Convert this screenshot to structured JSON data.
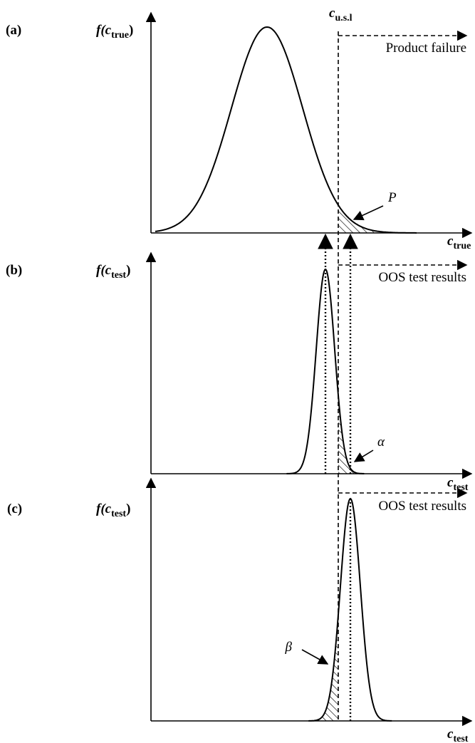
{
  "panels": [
    {
      "label": "(a)",
      "y_label": {
        "main": "f(c",
        "sub": "true",
        "close": ")"
      },
      "x_label": {
        "main": "c",
        "sub": "true"
      },
      "limit_label": {
        "main": "c",
        "sub": "u.s.l"
      },
      "region_text": "Product failure",
      "area_label": "P"
    },
    {
      "label": "(b)",
      "y_label": {
        "main": "f(c",
        "sub": "test",
        "close": ")"
      },
      "x_label": {
        "main": "c",
        "sub": "test"
      },
      "region_text": "OOS test results",
      "area_label": "α"
    },
    {
      "label": "(c)",
      "y_label": {
        "main": "f(c",
        "sub": "test",
        "close": ")"
      },
      "x_label": {
        "main": "c",
        "sub": "test"
      },
      "region_text": "OOS test results",
      "area_label": "β"
    }
  ]
}
